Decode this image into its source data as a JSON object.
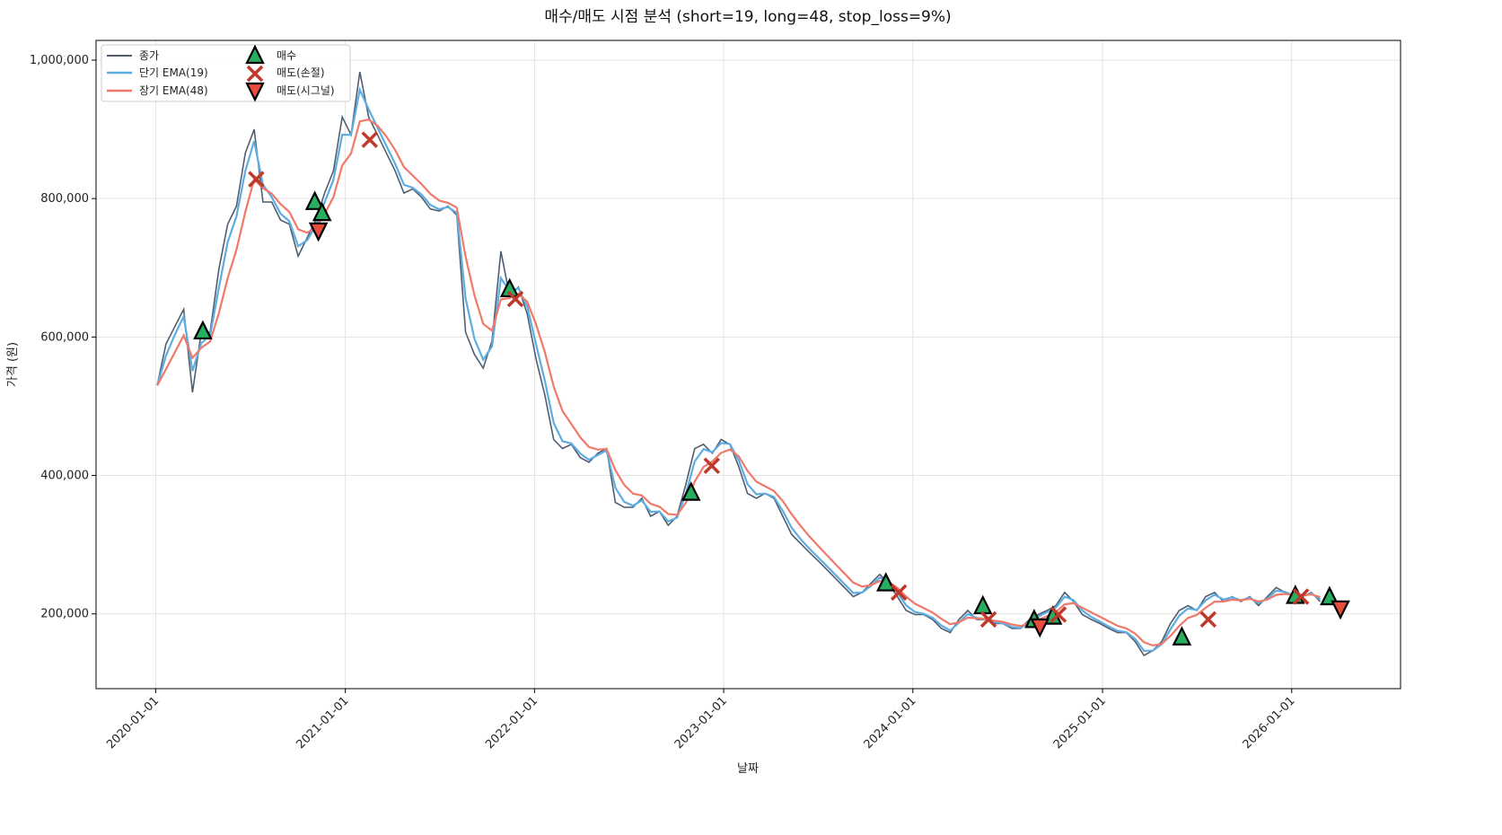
{
  "chart_data": {
    "type": "line",
    "title": "매수/매도 시점 분석 (short=19, long=48, stop_loss=9%)",
    "xlabel": "날짜",
    "ylabel": "가격 (원)",
    "xlim": [
      "2019-09-08",
      "2026-07-30"
    ],
    "ylim": [
      92000,
      1028500
    ],
    "grid": true,
    "legend_position": "top-left",
    "x_ticks": [
      "2020-01-01",
      "2021-01-01",
      "2022-01-01",
      "2023-01-01",
      "2024-01-01",
      "2025-01-01",
      "2026-01-01"
    ],
    "y_ticks": [
      200000,
      400000,
      600000,
      800000,
      1000000
    ],
    "y_tick_labels": [
      "200,000",
      "400,000",
      "600,000",
      "800,000",
      "1,000,000"
    ],
    "close": {
      "name": "종가",
      "color": "#4f5d6e",
      "start": "2020-01-04",
      "step_days": 17,
      "values": [
        530000,
        590000,
        615000,
        640000,
        520000,
        607000,
        607000,
        698000,
        763000,
        789000,
        866000,
        900000,
        795000,
        795000,
        769000,
        763000,
        717000,
        743000,
        769000,
        808000,
        840000,
        918000,
        892000,
        983000,
        918000,
        892000,
        866000,
        840000,
        808000,
        814000,
        802000,
        785000,
        782000,
        789000,
        776000,
        607000,
        575000,
        555000,
        594000,
        724000,
        659000,
        672000,
        633000,
        568000,
        516000,
        452000,
        439000,
        445000,
        426000,
        419000,
        432000,
        439000,
        361000,
        354000,
        354000,
        367000,
        341000,
        348000,
        328000,
        341000,
        387000,
        439000,
        445000,
        432000,
        452000,
        445000,
        413000,
        374000,
        367000,
        374000,
        367000,
        341000,
        315000,
        302000,
        289000,
        277000,
        264000,
        251000,
        238000,
        225000,
        231000,
        244000,
        257000,
        244000,
        225000,
        205000,
        199000,
        199000,
        192000,
        179000,
        173000,
        192000,
        205000,
        192000,
        192000,
        186000,
        186000,
        179000,
        179000,
        192000,
        199000,
        205000,
        212000,
        231000,
        218000,
        199000,
        192000,
        186000,
        179000,
        173000,
        173000,
        160000,
        140000,
        147000,
        160000,
        186000,
        205000,
        212000,
        205000,
        225000,
        231000,
        218000,
        225000,
        218000,
        225000,
        212000,
        225000,
        238000,
        231000,
        225000,
        225000,
        231000,
        218000
      ]
    },
    "ema_short": {
      "name": "단기 EMA(19)",
      "span": 19,
      "color": "#5dade2"
    },
    "ema_long": {
      "name": "장기 EMA(48)",
      "span": 48,
      "color": "#f1796b"
    },
    "trading_days_per_step": 12,
    "buy": {
      "name": "매수",
      "color": "#27ae60",
      "points": [
        [
          "2020-04-01",
          607000
        ],
        [
          "2020-11-03",
          794000
        ],
        [
          "2020-11-17",
          778000
        ],
        [
          "2021-11-14",
          668000
        ],
        [
          "2022-10-30",
          374000
        ],
        [
          "2023-11-10",
          243000
        ],
        [
          "2024-05-15",
          210000
        ],
        [
          "2024-08-22",
          190000
        ],
        [
          "2024-09-27",
          195000
        ],
        [
          "2025-06-03",
          165000
        ],
        [
          "2026-01-08",
          225000
        ],
        [
          "2026-03-15",
          223000
        ]
      ]
    },
    "sell_stop": {
      "name": "매도(손절)",
      "color": "#c0392b",
      "points": [
        [
          "2020-07-13",
          828000
        ],
        [
          "2021-02-17",
          885000
        ],
        [
          "2021-11-25",
          655000
        ],
        [
          "2022-12-09",
          414000
        ],
        [
          "2023-12-05",
          231000
        ],
        [
          "2024-05-26",
          192000
        ],
        [
          "2024-10-08",
          199000
        ],
        [
          "2025-07-24",
          192000
        ],
        [
          "2026-01-19",
          225000
        ]
      ]
    },
    "sell_signal": {
      "name": "매도(시그널)",
      "color": "#e74c3c",
      "points": [
        [
          "2020-11-10",
          755000
        ],
        [
          "2024-09-02",
          183000
        ],
        [
          "2026-04-05",
          209000
        ]
      ]
    }
  }
}
